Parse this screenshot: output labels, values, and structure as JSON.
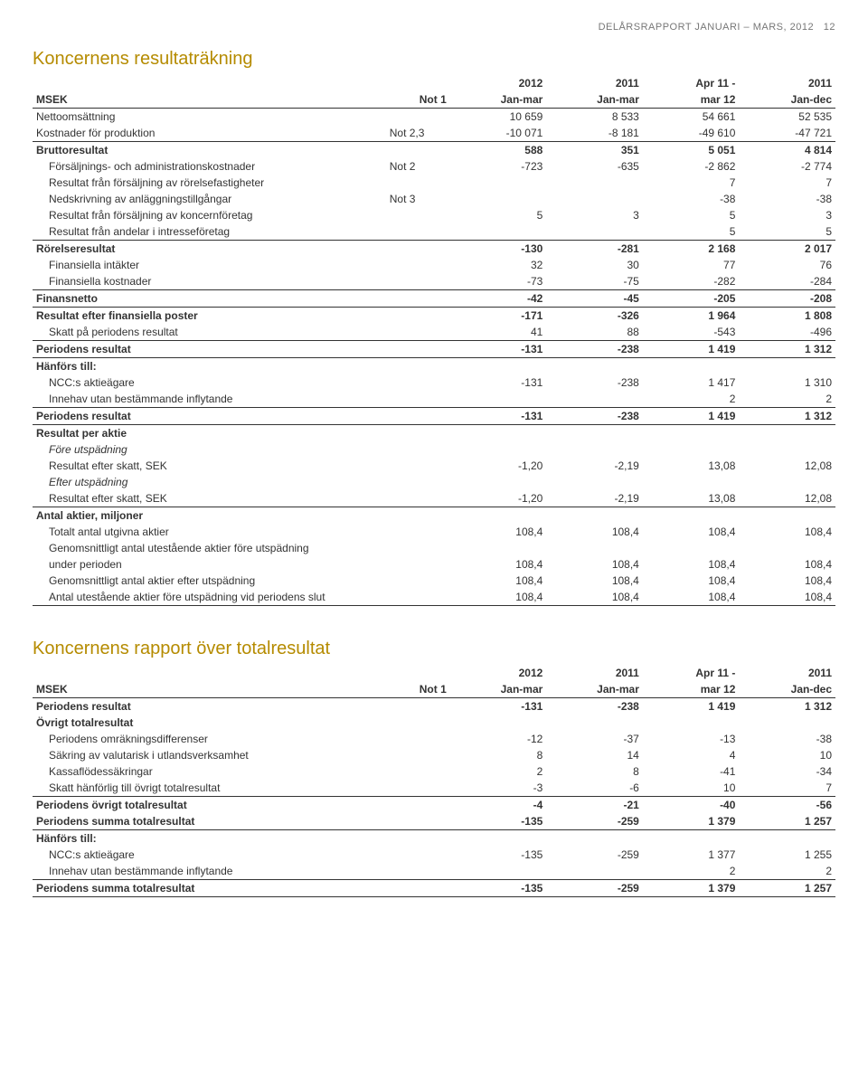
{
  "header": {
    "text": "DELÅRSRAPPORT JANUARI – MARS, 2012",
    "page": "12"
  },
  "t1": {
    "title": "Koncernens resultaträkning",
    "head1": [
      "",
      "",
      "2012",
      "2011",
      "Apr 11 -",
      "2011"
    ],
    "head2": [
      "MSEK",
      "Not 1",
      "Jan-mar",
      "Jan-mar",
      "mar 12",
      "Jan-dec"
    ],
    "rows": [
      {
        "label": "Nettoomsättning",
        "note": "",
        "v": [
          "10 659",
          "8 533",
          "54 661",
          "52 535"
        ]
      },
      {
        "label": "Kostnader för produktion",
        "note": "Not 2,3",
        "v": [
          "-10 071",
          "-8 181",
          "-49 610",
          "-47 721"
        ],
        "botRule": true
      },
      {
        "label": "Bruttoresultat",
        "note": "",
        "v": [
          "588",
          "351",
          "5 051",
          "4 814"
        ],
        "bold": true
      },
      {
        "label": "Försäljnings- och administrationskostnader",
        "note": "Not 2",
        "v": [
          "-723",
          "-635",
          "-2 862",
          "-2 774"
        ],
        "indent": true
      },
      {
        "label": "Resultat från försäljning av rörelsefastigheter",
        "note": "",
        "v": [
          "",
          "",
          "7",
          "7"
        ],
        "indent": true
      },
      {
        "label": "Nedskrivning av anläggningstillgångar",
        "note": "Not 3",
        "v": [
          "",
          "",
          "-38",
          "-38"
        ],
        "indent": true
      },
      {
        "label": "Resultat från försäljning av koncernföretag",
        "note": "",
        "v": [
          "5",
          "3",
          "5",
          "3"
        ],
        "indent": true
      },
      {
        "label": "Resultat från andelar i intresseföretag",
        "note": "",
        "v": [
          "",
          "",
          "5",
          "5"
        ],
        "indent": true,
        "botRule": true
      },
      {
        "label": "Rörelseresultat",
        "note": "",
        "v": [
          "-130",
          "-281",
          "2 168",
          "2 017"
        ],
        "bold": true
      },
      {
        "label": "Finansiella intäkter",
        "note": "",
        "v": [
          "32",
          "30",
          "77",
          "76"
        ],
        "indent": true
      },
      {
        "label": "Finansiella kostnader",
        "note": "",
        "v": [
          "-73",
          "-75",
          "-282",
          "-284"
        ],
        "indent": true,
        "botRule": true
      },
      {
        "label": "Finansnetto",
        "note": "",
        "v": [
          "-42",
          "-45",
          "-205",
          "-208"
        ],
        "bold": true,
        "botRule": true
      },
      {
        "label": "Resultat efter finansiella poster",
        "note": "",
        "v": [
          "-171",
          "-326",
          "1 964",
          "1 808"
        ],
        "bold": true
      },
      {
        "label": "Skatt på periodens resultat",
        "note": "",
        "v": [
          "41",
          "88",
          "-543",
          "-496"
        ],
        "indent": true,
        "botRule": true
      },
      {
        "label": "Periodens resultat",
        "note": "",
        "v": [
          "-131",
          "-238",
          "1 419",
          "1 312"
        ],
        "bold": true,
        "botRule": true
      },
      {
        "label": "Hänförs till:",
        "note": "",
        "v": [
          "",
          "",
          "",
          ""
        ],
        "bold": true
      },
      {
        "label": "NCC:s aktieägare",
        "note": "",
        "v": [
          "-131",
          "-238",
          "1 417",
          "1 310"
        ],
        "indent": true
      },
      {
        "label": "Innehav utan bestämmande inflytande",
        "note": "",
        "v": [
          "",
          "",
          "2",
          "2"
        ],
        "indent": true,
        "botRule": true
      },
      {
        "label": "Periodens resultat",
        "note": "",
        "v": [
          "-131",
          "-238",
          "1 419",
          "1 312"
        ],
        "bold": true,
        "botRule": true
      },
      {
        "label": "Resultat per aktie",
        "note": "",
        "v": [
          "",
          "",
          "",
          ""
        ],
        "bold": true
      },
      {
        "label": "Före utspädning",
        "note": "",
        "v": [
          "",
          "",
          "",
          ""
        ],
        "italic": true,
        "indent": true
      },
      {
        "label": "Resultat efter skatt, SEK",
        "note": "",
        "v": [
          "-1,20",
          "-2,19",
          "13,08",
          "12,08"
        ],
        "indent": true
      },
      {
        "label": "Efter utspädning",
        "note": "",
        "v": [
          "",
          "",
          "",
          ""
        ],
        "italic": true,
        "indent": true
      },
      {
        "label": "Resultat efter skatt, SEK",
        "note": "",
        "v": [
          "-1,20",
          "-2,19",
          "13,08",
          "12,08"
        ],
        "indent": true,
        "botRule": true
      },
      {
        "label": "Antal aktier, miljoner",
        "note": "",
        "v": [
          "",
          "",
          "",
          ""
        ],
        "bold": true
      },
      {
        "label": "Totalt antal utgivna aktier",
        "note": "",
        "v": [
          "108,4",
          "108,4",
          "108,4",
          "108,4"
        ],
        "indent": true
      },
      {
        "label": "Genomsnittligt antal utestående aktier före utspädning",
        "note": "",
        "v": [
          "",
          "",
          "",
          ""
        ],
        "indent": true
      },
      {
        "label": "under perioden",
        "note": "",
        "v": [
          "108,4",
          "108,4",
          "108,4",
          "108,4"
        ],
        "indent": true
      },
      {
        "label": "Genomsnittligt antal aktier efter utspädning",
        "note": "",
        "v": [
          "108,4",
          "108,4",
          "108,4",
          "108,4"
        ],
        "indent": true
      },
      {
        "label": "Antal utestående aktier före utspädning vid periodens slut",
        "note": "",
        "v": [
          "108,4",
          "108,4",
          "108,4",
          "108,4"
        ],
        "indent": true,
        "botRule": true
      }
    ]
  },
  "t2": {
    "title": "Koncernens rapport över totalresultat",
    "head1": [
      "",
      "",
      "2012",
      "2011",
      "Apr 11 -",
      "2011"
    ],
    "head2": [
      "MSEK",
      "Not 1",
      "Jan-mar",
      "Jan-mar",
      "mar 12",
      "Jan-dec"
    ],
    "rows": [
      {
        "label": "Periodens resultat",
        "note": "",
        "v": [
          "-131",
          "-238",
          "1 419",
          "1 312"
        ],
        "bold": true,
        "topRule": true
      },
      {
        "label": "Övrigt totalresultat",
        "note": "",
        "v": [
          "",
          "",
          "",
          ""
        ],
        "bold": true
      },
      {
        "label": "Periodens omräkningsdifferenser",
        "note": "",
        "v": [
          "-12",
          "-37",
          "-13",
          "-38"
        ],
        "indent": true
      },
      {
        "label": "Säkring av valutarisk i utlandsverksamhet",
        "note": "",
        "v": [
          "8",
          "14",
          "4",
          "10"
        ],
        "indent": true
      },
      {
        "label": "Kassaflödessäkringar",
        "note": "",
        "v": [
          "2",
          "8",
          "-41",
          "-34"
        ],
        "indent": true
      },
      {
        "label": "Skatt hänförlig till övrigt totalresultat",
        "note": "",
        "v": [
          "-3",
          "-6",
          "10",
          "7"
        ],
        "indent": true,
        "botRule": true
      },
      {
        "label": "Periodens övrigt totalresultat",
        "note": "",
        "v": [
          "-4",
          "-21",
          "-40",
          "-56"
        ],
        "bold": true
      },
      {
        "label": "Periodens summa totalresultat",
        "note": "",
        "v": [
          "-135",
          "-259",
          "1 379",
          "1 257"
        ],
        "bold": true,
        "botRule": true
      },
      {
        "label": "Hänförs till:",
        "note": "",
        "v": [
          "",
          "",
          "",
          ""
        ],
        "bold": true
      },
      {
        "label": "NCC:s aktieägare",
        "note": "",
        "v": [
          "-135",
          "-259",
          "1 377",
          "1 255"
        ],
        "indent": true
      },
      {
        "label": "Innehav utan bestämmande inflytande",
        "note": "",
        "v": [
          "",
          "",
          "2",
          "2"
        ],
        "indent": true,
        "botRule": true
      },
      {
        "label": "Periodens summa totalresultat",
        "note": "",
        "v": [
          "-135",
          "-259",
          "1 379",
          "1 257"
        ],
        "bold": true,
        "botRule": true
      }
    ]
  }
}
